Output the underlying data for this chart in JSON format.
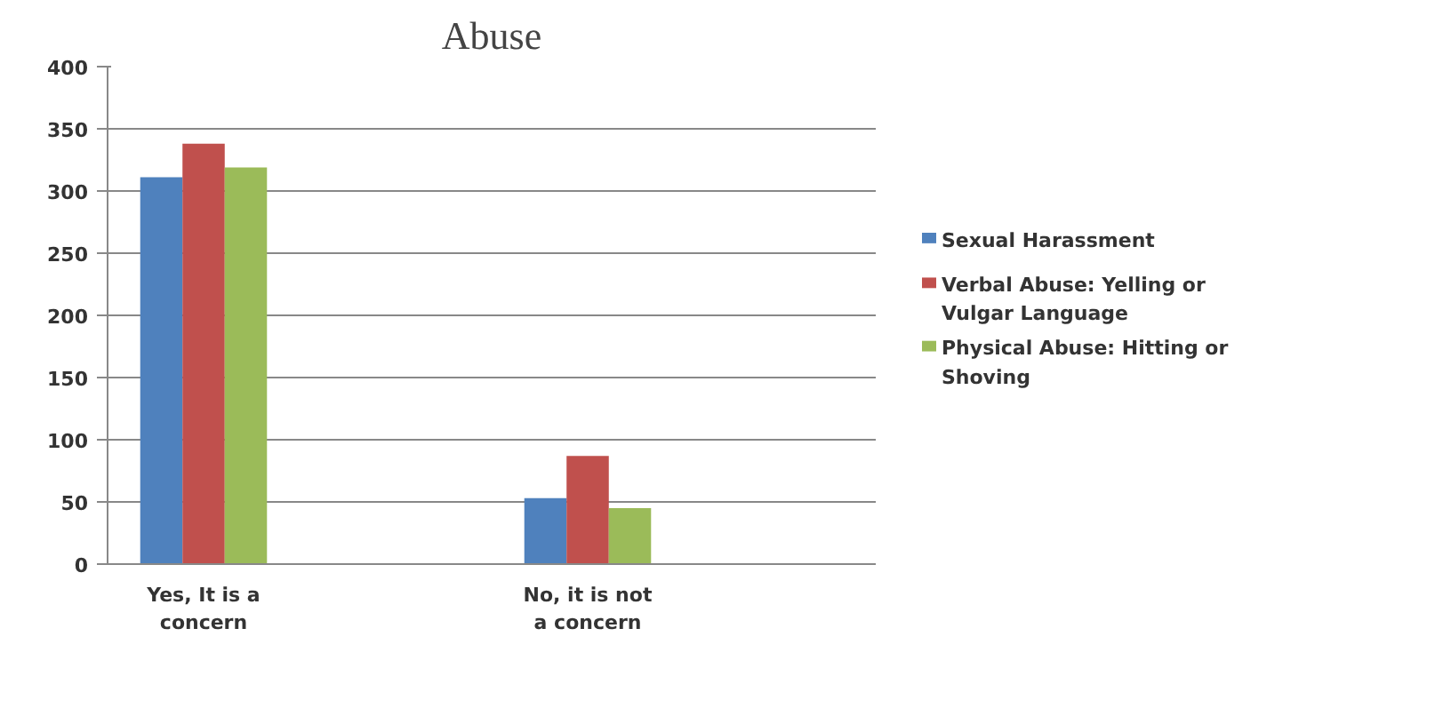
{
  "chart_data": {
    "type": "bar",
    "title": "Abuse",
    "categories": [
      "Yes, It is a concern",
      null,
      "No, it is not a concern",
      null
    ],
    "series": [
      {
        "name": "Sexual Harassment",
        "color": "#4f81bd",
        "values": [
          311,
          null,
          53,
          null
        ]
      },
      {
        "name": "Verbal Abuse: Yelling or Vulgar Language",
        "color": "#c0504d",
        "values": [
          338,
          null,
          87,
          null
        ]
      },
      {
        "name": "Physical Abuse: Hitting or Shoving",
        "color": "#9bbb59",
        "values": [
          319,
          null,
          45,
          null
        ]
      }
    ],
    "ylim": [
      0,
      400
    ],
    "yticks": [
      0,
      50,
      100,
      150,
      200,
      250,
      300,
      350,
      400
    ],
    "grid": "y",
    "legend": "right"
  }
}
